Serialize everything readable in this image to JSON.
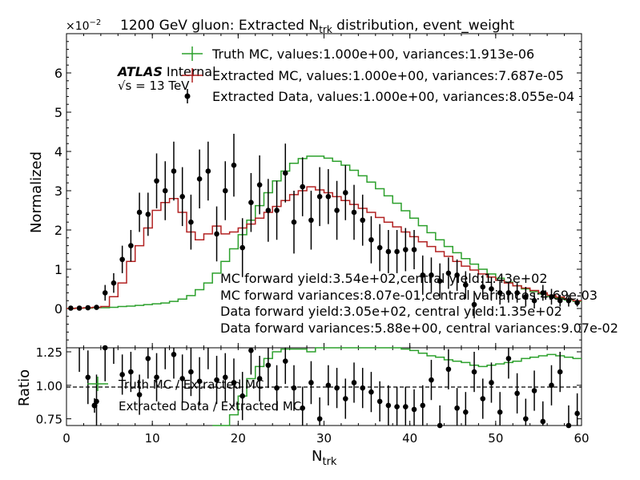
{
  "chart_data": {
    "type": "line",
    "title": "1200 GeV gluon: Extracted N",
    "title_sub": "trk",
    "title_rest": " distribution, event_weight",
    "xlabel_main": "N",
    "xlabel_sub": "trk",
    "ylabel_top": "Normalized",
    "ylabel_bottom": "Ratio",
    "y_multiplier": "×10",
    "y_multiplier_exp": "−2",
    "top_ylim": [
      -0.01,
      0.07
    ],
    "bottom_ylim": [
      0.7,
      1.28
    ],
    "xlim": [
      0,
      60
    ],
    "x_ticks": [
      "0",
      "10",
      "20",
      "30",
      "40",
      "50",
      "60"
    ],
    "top_yticks": [
      "0",
      "1",
      "2",
      "3",
      "4",
      "5",
      "6"
    ],
    "bottom_yticks": [
      "0.75",
      "1.00",
      "1.25"
    ],
    "atlas_label": "ATLAS",
    "atlas_sub": "Internal",
    "energy_label": "√s =  13 TeV",
    "legend_top": [
      "Truth MC, values:1.000e+00, variances:1.913e-06",
      "Extracted MC, values:1.000e+00, variances:7.687e-05",
      "Extracted Data, values:1.000e+00, variances:8.055e-04"
    ],
    "legend_bottom": [
      "Truth MC / Extracted MC",
      "Extracted Data / Extracted MC"
    ],
    "annotations": [
      "MC forward yield:3.54e+02,central yield:1.43e+02",
      "MC forward variances:8.07e-01,central variances:4.69e-03",
      "Data forward yield:3.05e+02, central yield:1.35e+02",
      "Data forward variances:5.88e+00, central variances:9.07e-02"
    ],
    "colors": {
      "truth": "#2ca02c",
      "extracted": "#b22222",
      "data": "#000000"
    },
    "bins_start": 0,
    "bin_width": 1,
    "truth_mc": [
      0.0,
      0.0001,
      0.0001,
      0.0002,
      0.0002,
      0.0003,
      0.0005,
      0.0006,
      0.0008,
      0.001,
      0.0012,
      0.0014,
      0.0018,
      0.0024,
      0.0033,
      0.0048,
      0.0065,
      0.009,
      0.012,
      0.0152,
      0.0188,
      0.0225,
      0.0262,
      0.0295,
      0.0325,
      0.035,
      0.037,
      0.0382,
      0.0388,
      0.0388,
      0.0383,
      0.0375,
      0.0365,
      0.0352,
      0.0338,
      0.0322,
      0.0305,
      0.0287,
      0.0268,
      0.0249,
      0.023,
      0.0211,
      0.0193,
      0.0175,
      0.0158,
      0.0142,
      0.0127,
      0.0113,
      0.01,
      0.0088,
      0.0077,
      0.0067,
      0.0058,
      0.005,
      0.0043,
      0.0037,
      0.0031,
      0.0026,
      0.0022,
      0.0018
    ],
    "extracted_mc": [
      0.0,
      0.0001,
      0.0002,
      0.0003,
      0.0005,
      0.003,
      0.0065,
      0.012,
      0.016,
      0.0205,
      0.025,
      0.027,
      0.028,
      0.0245,
      0.0195,
      0.0175,
      0.019,
      0.021,
      0.019,
      0.0195,
      0.0205,
      0.0215,
      0.023,
      0.0245,
      0.026,
      0.0275,
      0.029,
      0.03,
      0.031,
      0.0302,
      0.0295,
      0.0285,
      0.0275,
      0.0265,
      0.0255,
      0.0245,
      0.0232,
      0.022,
      0.0208,
      0.0195,
      0.0183,
      0.017,
      0.0158,
      0.0145,
      0.0133,
      0.012,
      0.0108,
      0.0098,
      0.0088,
      0.008,
      0.0072,
      0.0065,
      0.0058,
      0.0052,
      0.0046,
      0.004,
      0.0034,
      0.0029,
      0.0024,
      0.002
    ],
    "extracted_data": [
      0.0001,
      0.0001,
      0.0002,
      0.0003,
      0.004,
      0.0065,
      0.0125,
      0.016,
      0.0245,
      0.024,
      0.0325,
      0.03,
      0.035,
      0.0285,
      0.022,
      0.033,
      0.035,
      0.019,
      0.03,
      0.0365,
      0.0155,
      0.027,
      0.0315,
      0.025,
      0.025,
      0.0345,
      0.022,
      0.031,
      0.0225,
      0.0285,
      0.0285,
      0.025,
      0.0295,
      0.0245,
      0.0225,
      0.0175,
      0.0155,
      0.0145,
      0.0145,
      0.015,
      0.015,
      0.0085,
      0.0085,
      0.007,
      0.009,
      0.0085,
      0.006,
      0.001,
      0.0055,
      0.005,
      0.004,
      0.004,
      0.004,
      0.003,
      0.002,
      0.004,
      0.003,
      0.002,
      0.002,
      0.0015
    ],
    "extracted_data_err": [
      0.0001,
      0.0001,
      0.0002,
      0.0003,
      0.002,
      0.0025,
      0.0035,
      0.004,
      0.005,
      0.0055,
      0.007,
      0.0075,
      0.0075,
      0.0075,
      0.007,
      0.0075,
      0.0075,
      0.007,
      0.0075,
      0.008,
      0.0075,
      0.0075,
      0.0075,
      0.008,
      0.0075,
      0.0075,
      0.008,
      0.0075,
      0.0075,
      0.0075,
      0.007,
      0.0075,
      0.007,
      0.007,
      0.0065,
      0.006,
      0.006,
      0.0055,
      0.0055,
      0.0055,
      0.005,
      0.005,
      0.0045,
      0.0045,
      0.004,
      0.004,
      0.0035,
      0.0035,
      0.003,
      0.003,
      0.003,
      0.0025,
      0.0025,
      0.0025,
      0.002,
      0.002,
      0.002,
      0.0015,
      0.0015,
      0.001
    ],
    "ratio_truth": [
      null,
      null,
      null,
      null,
      null,
      null,
      null,
      null,
      null,
      null,
      null,
      null,
      null,
      null,
      null,
      null,
      null,
      0.6,
      0.65,
      0.78,
      0.92,
      1.05,
      1.14,
      1.2,
      1.25,
      1.27,
      1.27,
      1.27,
      1.25,
      1.28,
      1.29,
      1.31,
      1.32,
      1.32,
      1.32,
      1.31,
      1.31,
      1.3,
      1.29,
      1.27,
      1.26,
      1.24,
      1.22,
      1.21,
      1.19,
      1.18,
      1.17,
      1.15,
      1.14,
      1.15,
      1.16,
      1.17,
      1.18,
      1.2,
      1.21,
      1.22,
      1.23,
      1.22,
      1.21,
      1.2
    ],
    "ratio_data": [
      null,
      1.4,
      1.06,
      0.88,
      1.28,
      1.36,
      1.08,
      1.1,
      0.93,
      1.2,
      1.06,
      1.3,
      1.23,
      1.05,
      1.1,
      1.03,
      1.3,
      1.04,
      1.06,
      1.02,
      0.92,
      1.26,
      1.05,
      1.15,
      0.98,
      1.18,
      0.98,
      0.83,
      1.02,
      0.75,
      1.0,
      0.98,
      0.9,
      1.02,
      0.98,
      0.95,
      0.88,
      0.85,
      0.84,
      0.84,
      0.82,
      0.85,
      1.04,
      0.7,
      1.12,
      0.83,
      0.8,
      1.1,
      0.9,
      1.02,
      0.8,
      1.2,
      0.94,
      0.75,
      0.96,
      0.73,
      1.0,
      1.1,
      0.7,
      0.79
    ],
    "ratio_data_err": [
      0.3,
      0.3,
      0.2,
      0.2,
      0.25,
      0.2,
      0.15,
      0.15,
      0.15,
      0.15,
      0.18,
      0.18,
      0.18,
      0.18,
      0.18,
      0.18,
      0.18,
      0.18,
      0.18,
      0.18,
      0.18,
      0.18,
      0.17,
      0.17,
      0.17,
      0.17,
      0.17,
      0.16,
      0.16,
      0.16,
      0.15,
      0.15,
      0.15,
      0.15,
      0.15,
      0.15,
      0.15,
      0.15,
      0.15,
      0.15,
      0.15,
      0.15,
      0.15,
      0.15,
      0.15,
      0.15,
      0.15,
      0.15,
      0.15,
      0.15,
      0.15,
      0.15,
      0.15,
      0.15,
      0.15,
      0.15,
      0.15,
      0.15,
      0.15,
      0.15
    ]
  }
}
